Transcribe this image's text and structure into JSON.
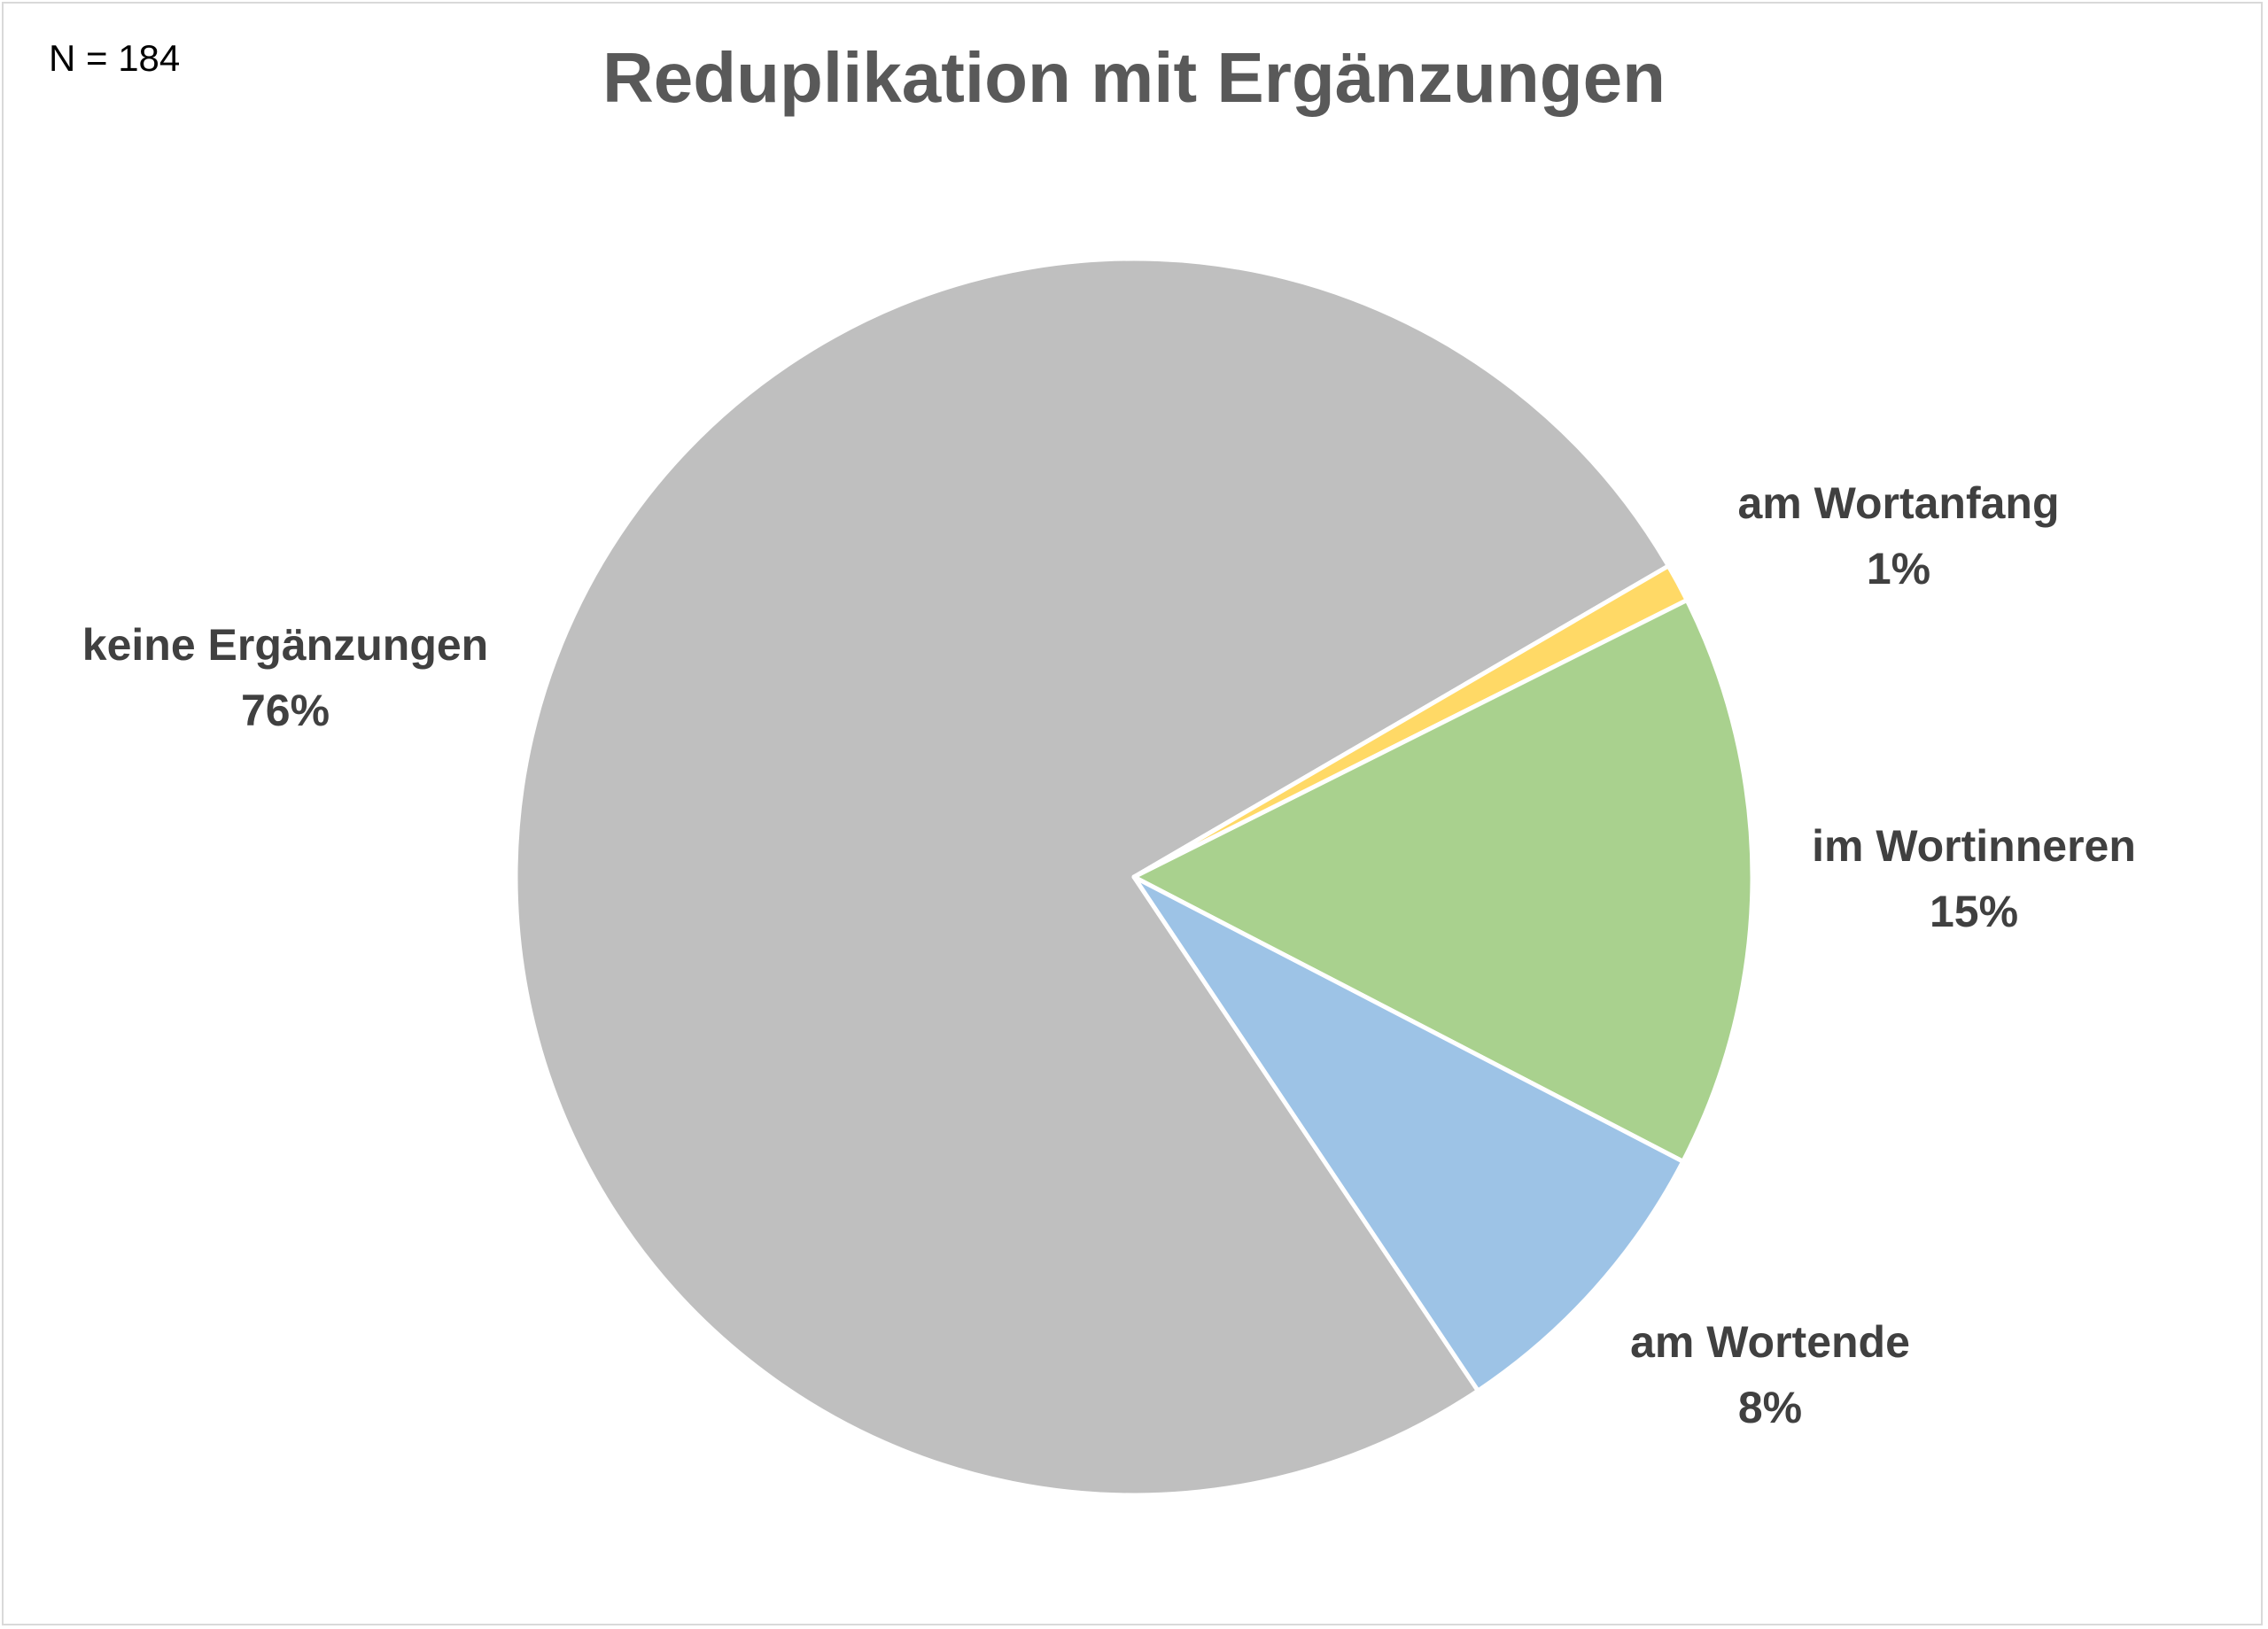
{
  "chart_data": {
    "type": "pie",
    "title": "Reduplikation mit Ergänzungen",
    "annotation": "N = 184",
    "slices": [
      {
        "label": "keine Ergänzungen",
        "value": 76,
        "value_label": "76%",
        "color": "#bfbfbf"
      },
      {
        "label": "am Wortanfang",
        "value": 1,
        "value_label": "1%",
        "color": "#ffd966"
      },
      {
        "label": "im Wortinneren",
        "value": 15,
        "value_label": "15%",
        "color": "#a9d18e"
      },
      {
        "label": "am Wortende",
        "value": 8,
        "value_label": "8%",
        "color": "#9dc3e6"
      }
    ]
  }
}
